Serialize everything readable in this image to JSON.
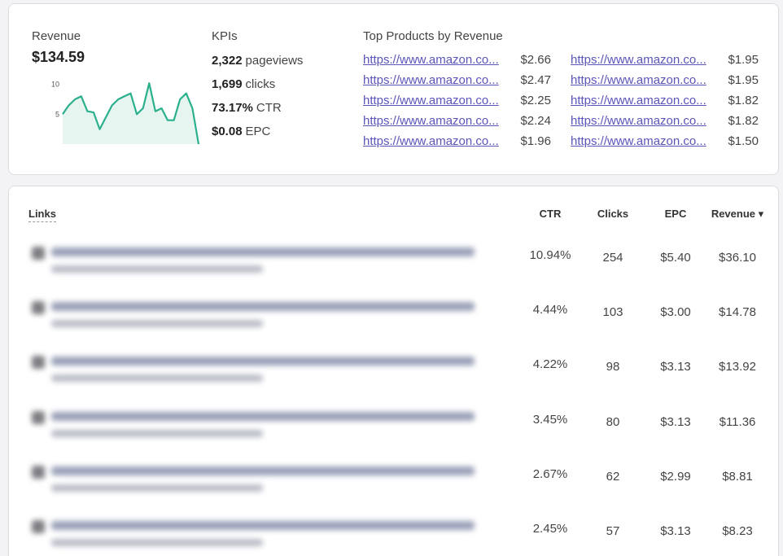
{
  "summary": {
    "revenue_label": "Revenue",
    "revenue_value": "$134.59",
    "chart_data": {
      "type": "area",
      "y_ticks": [
        "10",
        "5"
      ],
      "ylim": [
        0,
        12
      ],
      "values": [
        5,
        6.5,
        7.5,
        8,
        5.5,
        5.3,
        2.5,
        4.5,
        6.5,
        7.5,
        8,
        8.5,
        5,
        6,
        10.2,
        5.5,
        6,
        4,
        4,
        7.5,
        8.5,
        6,
        0
      ]
    },
    "kpi_label": "KPIs",
    "kpis": [
      {
        "value": "2,322",
        "unit": "pageviews"
      },
      {
        "value": "1,699",
        "unit": "clicks"
      },
      {
        "value": "73.17%",
        "unit": "CTR"
      },
      {
        "value": "$0.08",
        "unit": "EPC"
      }
    ],
    "top_products_label": "Top Products by Revenue",
    "products_left": [
      {
        "url": "https://www.amazon.co...",
        "value": "$2.66"
      },
      {
        "url": "https://www.amazon.co...",
        "value": "$2.47"
      },
      {
        "url": "https://www.amazon.co...",
        "value": "$2.25"
      },
      {
        "url": "https://www.amazon.co...",
        "value": "$2.24"
      },
      {
        "url": "https://www.amazon.co...",
        "value": "$1.96"
      }
    ],
    "products_right": [
      {
        "url": "https://www.amazon.co...",
        "value": "$1.95"
      },
      {
        "url": "https://www.amazon.co...",
        "value": "$1.95"
      },
      {
        "url": "https://www.amazon.co...",
        "value": "$1.82"
      },
      {
        "url": "https://www.amazon.co...",
        "value": "$1.82"
      },
      {
        "url": "https://www.amazon.co...",
        "value": "$1.50"
      }
    ]
  },
  "table": {
    "headers": {
      "links": "Links",
      "ctr": "CTR",
      "clicks": "Clicks",
      "epc": "EPC",
      "revenue": "Revenue",
      "sort_indicator": "▾"
    },
    "rows": [
      {
        "ctr": "10.94%",
        "clicks": "254",
        "epc": "$5.40",
        "revenue": "$36.10"
      },
      {
        "ctr": "4.44%",
        "clicks": "103",
        "epc": "$3.00",
        "revenue": "$14.78"
      },
      {
        "ctr": "4.22%",
        "clicks": "98",
        "epc": "$3.13",
        "revenue": "$13.92"
      },
      {
        "ctr": "3.45%",
        "clicks": "80",
        "epc": "$3.13",
        "revenue": "$11.36"
      },
      {
        "ctr": "2.67%",
        "clicks": "62",
        "epc": "$2.99",
        "revenue": "$8.81"
      },
      {
        "ctr": "2.45%",
        "clicks": "57",
        "epc": "$3.13",
        "revenue": "$8.23"
      }
    ]
  },
  "colors": {
    "accent": "#2bb08e",
    "link": "#5a55b8"
  }
}
